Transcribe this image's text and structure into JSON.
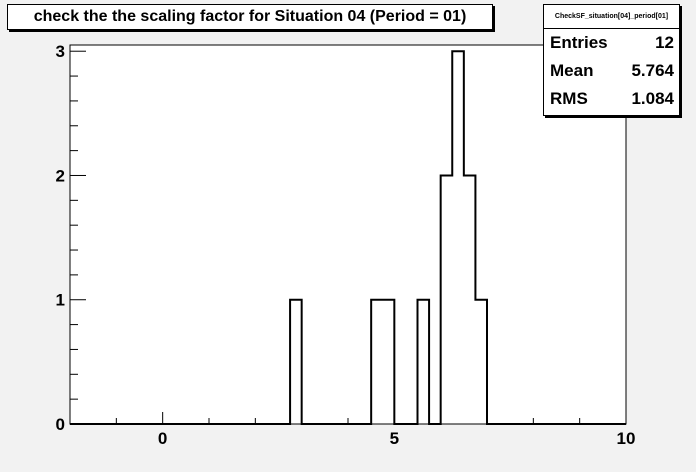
{
  "title": "check the the scaling factor for Situation 04 (Period = 01)",
  "stats": {
    "name": "CheckSF_situation[04]_period[01]",
    "rows": [
      {
        "label": "Entries",
        "value": "12"
      },
      {
        "label": "Mean",
        "value": "5.764"
      },
      {
        "label": "RMS",
        "value": "1.084"
      }
    ]
  },
  "chart_data": {
    "type": "bar",
    "xlim": [
      -2,
      10
    ],
    "ylim": [
      0,
      3.05
    ],
    "xticks": [
      0,
      5,
      10
    ],
    "yticks": [
      0,
      1,
      2,
      3
    ],
    "bin_width": 0.25,
    "bins": [
      {
        "x": 2.75,
        "count": 1
      },
      {
        "x": 4.5,
        "count": 1
      },
      {
        "x": 4.75,
        "count": 1
      },
      {
        "x": 5.5,
        "count": 1
      },
      {
        "x": 6.0,
        "count": 2
      },
      {
        "x": 6.25,
        "count": 3
      },
      {
        "x": 6.5,
        "count": 2
      },
      {
        "x": 6.75,
        "count": 1
      }
    ]
  }
}
